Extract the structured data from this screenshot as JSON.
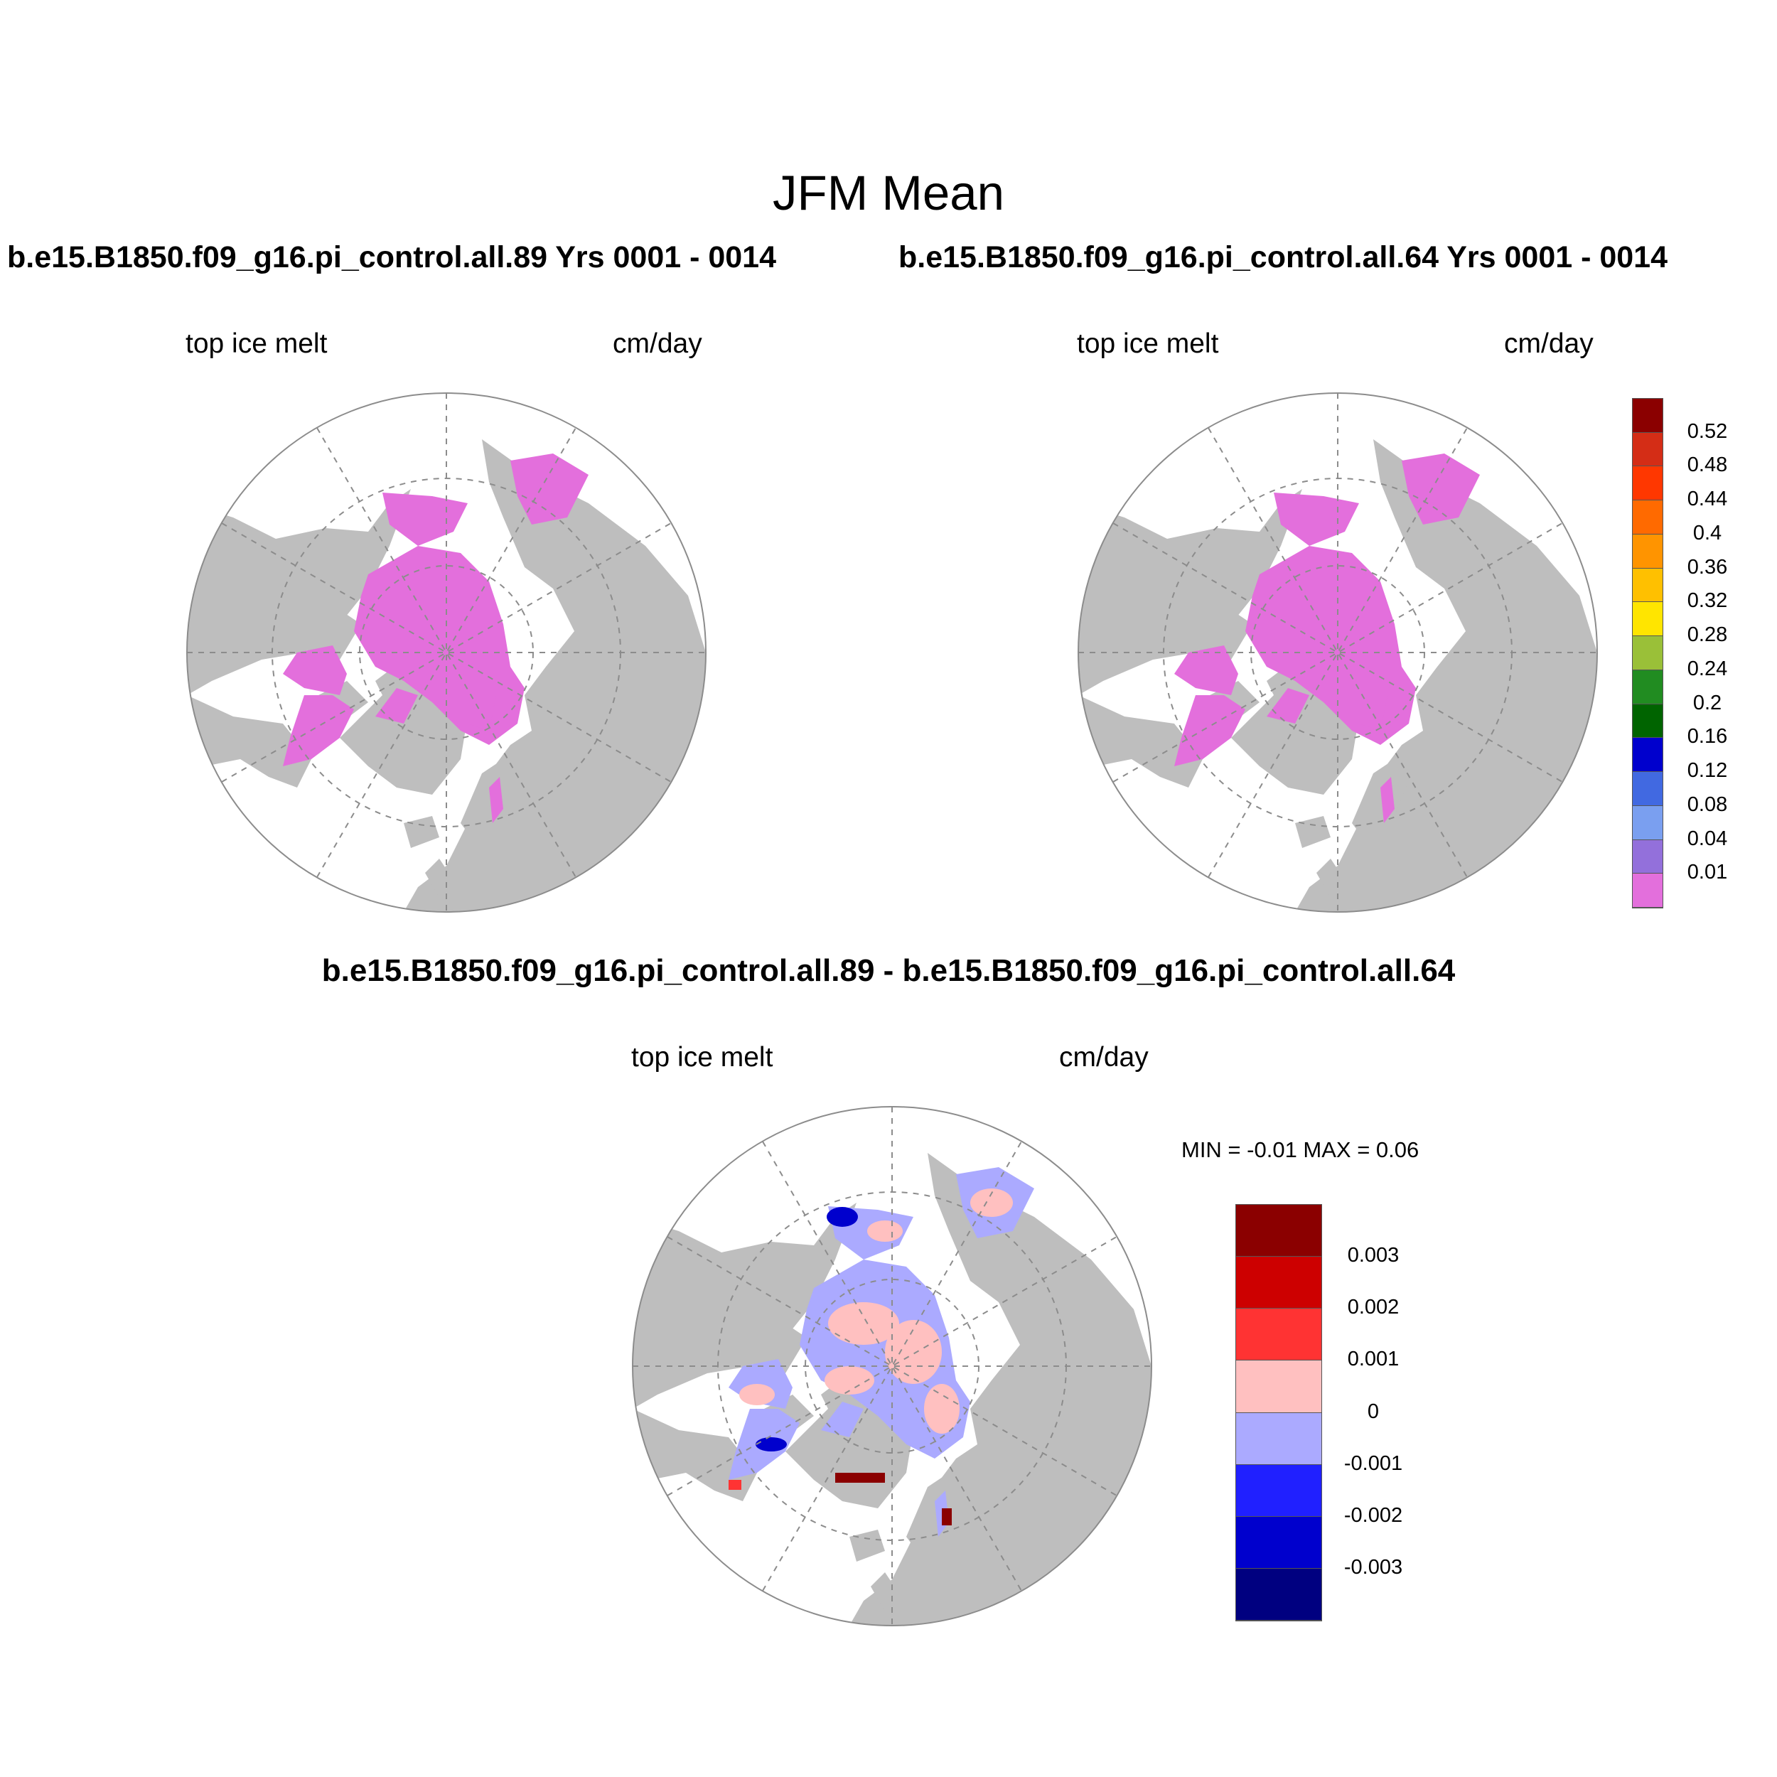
{
  "figure": {
    "title": "JFM Mean",
    "colors": {
      "land": "#bebebe",
      "ocean": "#ffffff",
      "ice_melt": "#e36fdc",
      "grid": "#8c8c8c"
    }
  },
  "panels": [
    {
      "id": "case-89",
      "title": "b.e15.B1850.f09_g16.pi_control.all.89  Yrs 0001 - 0014",
      "left_label": "top ice melt",
      "right_label": "cm/day"
    },
    {
      "id": "case-64",
      "title": "b.e15.B1850.f09_g16.pi_control.all.64  Yrs 0001 - 0014",
      "left_label": "top ice melt",
      "right_label": "cm/day"
    },
    {
      "id": "difference",
      "title": "b.e15.B1850.f09_g16.pi_control.all.89 - b.e15.B1850.f09_g16.pi_control.all.64",
      "left_label": "top ice melt",
      "right_label": "cm/day",
      "stats": "MIN =  -0.01 MAX =   0.06"
    }
  ],
  "colorbar_main": {
    "labels": [
      "0.52",
      "0.48",
      "0.44",
      "0.4",
      "0.36",
      "0.32",
      "0.28",
      "0.24",
      "0.2",
      "0.16",
      "0.12",
      "0.08",
      "0.04",
      "0.01"
    ],
    "colors": [
      "#8b0000",
      "#d42d16",
      "#ff3700",
      "#ff6a00",
      "#ff9400",
      "#ffc000",
      "#ffe500",
      "#9ac038",
      "#218c21",
      "#006400",
      "#0000cd",
      "#4169e1",
      "#7a9ff0",
      "#9370db",
      "#e36fdc"
    ]
  },
  "colorbar_diff": {
    "labels": [
      "0.003",
      "0.002",
      "0.001",
      "0",
      "-0.001",
      "-0.002",
      "-0.003"
    ],
    "colors": [
      "#8b0000",
      "#cd0000",
      "#ff3333",
      "#ffc0c0",
      "#abaaff",
      "#2020ff",
      "#0000cd",
      "#000080"
    ]
  }
}
